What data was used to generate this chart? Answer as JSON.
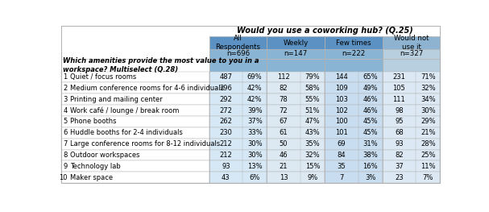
{
  "title_top": "Would you use a coworking hub? (Q.25)",
  "rows": [
    {
      "num": "1",
      "label": "Quiet / focus rooms",
      "all_n": "487",
      "all_p": "69%",
      "w_n": "112",
      "w_p": "79%",
      "f_n": "144",
      "f_p": "65%",
      "no_n": "231",
      "no_p": "71%"
    },
    {
      "num": "2",
      "label": "Medium conference rooms for 4-6 individuals",
      "all_n": "296",
      "all_p": "42%",
      "w_n": "82",
      "w_p": "58%",
      "f_n": "109",
      "f_p": "49%",
      "no_n": "105",
      "no_p": "32%"
    },
    {
      "num": "3",
      "label": "Printing and mailing center",
      "all_n": "292",
      "all_p": "42%",
      "w_n": "78",
      "w_p": "55%",
      "f_n": "103",
      "f_p": "46%",
      "no_n": "111",
      "no_p": "34%"
    },
    {
      "num": "4",
      "label": "Work café / lounge / break room",
      "all_n": "272",
      "all_p": "39%",
      "w_n": "72",
      "w_p": "51%",
      "f_n": "102",
      "f_p": "46%",
      "no_n": "98",
      "no_p": "30%"
    },
    {
      "num": "5",
      "label": "Phone booths",
      "all_n": "262",
      "all_p": "37%",
      "w_n": "67",
      "w_p": "47%",
      "f_n": "100",
      "f_p": "45%",
      "no_n": "95",
      "no_p": "29%"
    },
    {
      "num": "6",
      "label": "Huddle booths for 2-4 individuals",
      "all_n": "230",
      "all_p": "33%",
      "w_n": "61",
      "w_p": "43%",
      "f_n": "101",
      "f_p": "45%",
      "no_n": "68",
      "no_p": "21%"
    },
    {
      "num": "7",
      "label": "Large conference rooms for 8-12 individuals",
      "all_n": "212",
      "all_p": "30%",
      "w_n": "50",
      "w_p": "35%",
      "f_n": "69",
      "f_p": "31%",
      "no_n": "93",
      "no_p": "28%"
    },
    {
      "num": "8",
      "label": "Outdoor workspaces",
      "all_n": "212",
      "all_p": "30%",
      "w_n": "46",
      "w_p": "32%",
      "f_n": "84",
      "f_p": "38%",
      "no_n": "82",
      "no_p": "25%"
    },
    {
      "num": "9",
      "label": "Technology lab",
      "all_n": "93",
      "all_p": "13%",
      "w_n": "21",
      "w_p": "15%",
      "f_n": "35",
      "f_p": "16%",
      "no_n": "37",
      "no_p": "11%"
    },
    {
      "num": "10",
      "label": "Maker space",
      "all_n": "43",
      "all_p": "6%",
      "w_n": "13",
      "w_p": "9%",
      "f_n": "7",
      "f_p": "3%",
      "no_n": "23",
      "no_p": "7%"
    }
  ],
  "c_header_dark": "#6695c8",
  "c_header_medium": "#7baad4",
  "c_header_light": "#a8c4de",
  "c_header_n_dark": "#8db0d8",
  "c_header_n_medium": "#9bbedd",
  "c_header_n_light": "#c2d7e8",
  "c_row_blue1": "#dce9f5",
  "c_row_blue2": "#cfe0f0",
  "c_row_blue3": "#c4d9ed",
  "c_row_white": "#ffffff",
  "c_border": "#b0b0b0",
  "c_white": "#ffffff",
  "c_gray_bg": "#e8e8e8"
}
